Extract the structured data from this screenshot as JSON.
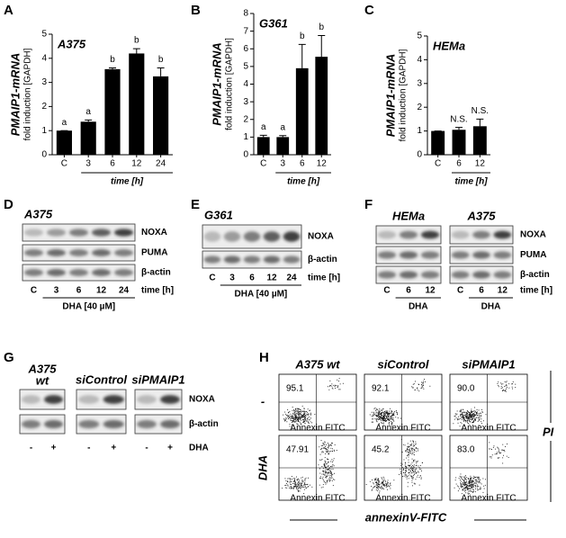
{
  "chart_data": [
    {
      "type": "bar",
      "panel": "A",
      "title": "A375",
      "ylabel": "PMAIP1-mRNA",
      "ylabel2": "fold induction [GAPDH]",
      "xlabel": "time [h]",
      "categories": [
        "C",
        "3",
        "6",
        "12",
        "24"
      ],
      "values": [
        1.0,
        1.37,
        3.55,
        4.2,
        3.25
      ],
      "errors": [
        0,
        0.07,
        0.05,
        0.2,
        0.35
      ],
      "annotations": [
        "a",
        "a",
        "b",
        "b",
        "b"
      ],
      "color": "#000000",
      "ylim": [
        0,
        5
      ],
      "yticks": [
        0,
        1,
        2,
        3,
        4,
        5
      ]
    },
    {
      "type": "bar",
      "panel": "B",
      "title": "G361",
      "ylabel": "PMAIP1-mRNA",
      "ylabel2": "fold induction [GAPDH]",
      "xlabel": "time [h]",
      "categories": [
        "C",
        "3",
        "6",
        "12"
      ],
      "values": [
        1.0,
        1.0,
        4.9,
        5.55
      ],
      "errors": [
        0.1,
        0.08,
        1.35,
        1.2
      ],
      "annotations": [
        "a",
        "a",
        "b",
        "b"
      ],
      "color": "#000000",
      "ylim": [
        0,
        8
      ],
      "yticks": [
        0,
        1,
        2,
        3,
        4,
        5,
        6,
        7,
        8
      ]
    },
    {
      "type": "bar",
      "panel": "C",
      "title": "HEMa",
      "ylabel": "PMAIP1-mRNA",
      "ylabel2": "fold induction [GAPDH]",
      "xlabel": "time [h]",
      "categories": [
        "C",
        "6",
        "12"
      ],
      "values": [
        1.0,
        1.05,
        1.2
      ],
      "errors": [
        0,
        0.1,
        0.3
      ],
      "annotations": [
        null,
        "N.S.",
        "N.S."
      ],
      "color": "#000000",
      "ylim": [
        0,
        5
      ],
      "yticks": [
        0,
        1,
        2,
        3,
        4,
        5
      ]
    }
  ],
  "blots": {
    "D": {
      "panel": "D",
      "rows": [
        "NOXA",
        "PUMA",
        "β-actin"
      ],
      "time": "time [h]",
      "groups": [
        {
          "title": "A375",
          "lanes": [
            "C",
            "3",
            "6",
            "12",
            "24"
          ],
          "treatment": "DHA [40 µM]"
        }
      ]
    },
    "E": {
      "panel": "E",
      "rows": [
        "NOXA",
        "β-actin"
      ],
      "time": "time [h]",
      "groups": [
        {
          "title": "G361",
          "lanes": [
            "C",
            "3",
            "6",
            "12",
            "24"
          ],
          "treatment": "DHA [40 µM]"
        }
      ]
    },
    "F": {
      "panel": "F",
      "rows": [
        "NOXA",
        "PUMA",
        "β-actin"
      ],
      "time": "time [h]",
      "groups": [
        {
          "title": "HEMa",
          "lanes": [
            "C",
            "6",
            "12"
          ],
          "treatment": "DHA"
        },
        {
          "title": "A375",
          "lanes": [
            "C",
            "6",
            "12"
          ],
          "treatment": "DHA"
        }
      ]
    },
    "G": {
      "panel": "G",
      "rows": [
        "NOXA",
        "β-actin"
      ],
      "time": "DHA",
      "groups": [
        {
          "title": "A375",
          "subtitle": "wt",
          "lanes": [
            "-",
            "+"
          ]
        },
        {
          "title": "siControl",
          "lanes": [
            "-",
            "+"
          ]
        },
        {
          "title": "siPMAIP1",
          "lanes": [
            "-",
            "+"
          ]
        }
      ]
    }
  },
  "flow": {
    "panel": "H",
    "columns": [
      "A375 wt",
      "siControl",
      "siPMAIP1"
    ],
    "rows": [
      "-",
      "DHA"
    ],
    "percentages": [
      [
        "95.1",
        "92.1",
        "90.0"
      ],
      [
        "47.91",
        "45.2",
        "83.0"
      ]
    ],
    "plot_xlabel": "Annexin FITC",
    "ylabel": "PI",
    "xlabel": "annexinV-FITC"
  }
}
